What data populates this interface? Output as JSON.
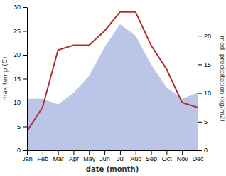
{
  "chart_data": {
    "type": "line",
    "xlabel": "date (month)",
    "ylabel": "max temp (C)",
    "y2label": "med. precipitation (kg/m2)",
    "categories": [
      "Jan",
      "Feb",
      "Mar",
      "Apr",
      "May",
      "Jun",
      "Jul",
      "Aug",
      "Sep",
      "Oct",
      "Nov",
      "Dec"
    ],
    "series": [
      {
        "type": "area",
        "axis": "y2",
        "color": "#bbc5e8",
        "values": [
          9,
          9,
          8,
          10,
          13,
          18,
          22,
          20,
          15,
          11,
          9,
          10
        ]
      },
      {
        "type": "line",
        "color": "#b03030",
        "values": [
          4,
          9,
          21,
          22,
          22,
          25,
          29,
          29,
          22,
          17,
          10,
          9
        ]
      }
    ],
    "ylim": [
      0,
      30
    ],
    "yticks": [
      0,
      5,
      10,
      15,
      20,
      25,
      30
    ],
    "y2lim": [
      0,
      25
    ],
    "y2ticks": [
      0,
      5,
      10,
      15,
      20
    ],
    "grid": false
  }
}
